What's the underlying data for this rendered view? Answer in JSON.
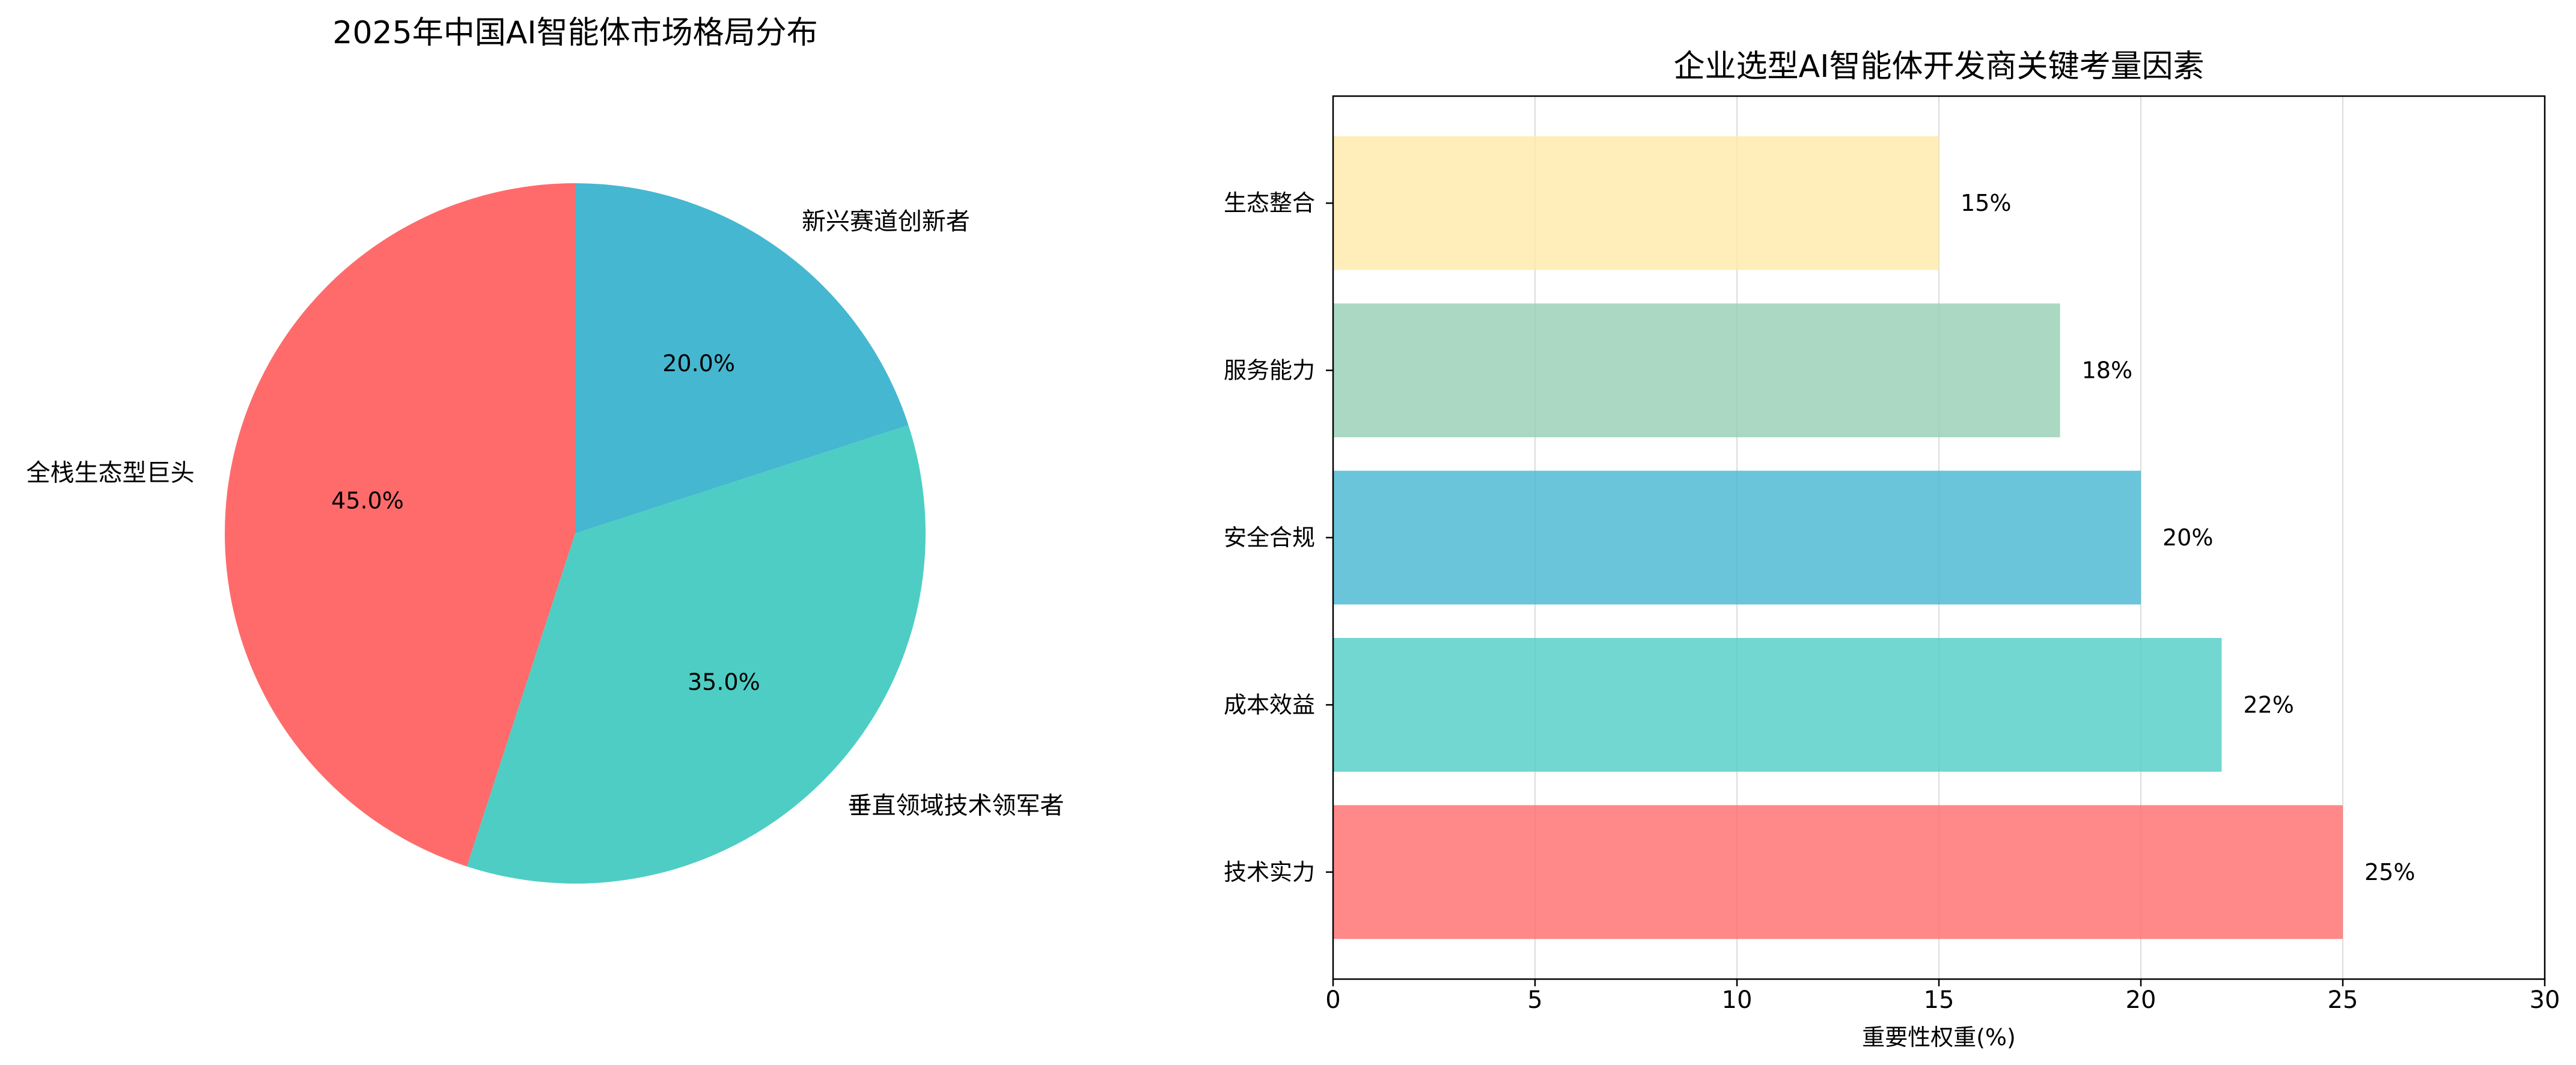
{
  "chart_data": [
    {
      "type": "pie",
      "title": "2025年中国AI智能体市场格局分布",
      "labels": [
        "全栈生态型巨头",
        "垂直领域技术领军者",
        "新兴赛道创新者"
      ],
      "values": [
        45.0,
        35.0,
        20.0
      ],
      "value_labels": [
        "45.0%",
        "35.0%",
        "20.0%"
      ],
      "colors": [
        "#FF6B6B",
        "#4ECDC4",
        "#45B7D1"
      ],
      "start_angle_deg": 90,
      "direction": "counterclockwise"
    },
    {
      "type": "bar",
      "orientation": "horizontal",
      "title": "企业选型AI智能体开发商关键考量因素",
      "categories": [
        "技术实力",
        "成本效益",
        "安全合规",
        "服务能力",
        "生态整合"
      ],
      "values": [
        25,
        22,
        20,
        18,
        15
      ],
      "value_labels": [
        "25%",
        "22%",
        "20%",
        "18%",
        "15%"
      ],
      "colors": [
        "#FF6B6B",
        "#4ECDC4",
        "#45B7D1",
        "#96CEB4",
        "#FFEAA7"
      ],
      "bar_opacity": 0.8,
      "xlabel": "重要性权重(%)",
      "ylabel": "",
      "xlim": [
        0,
        30
      ],
      "xticks": [
        0,
        5,
        10,
        15,
        20,
        25,
        30
      ],
      "grid": "x-axis vertical lines"
    }
  ]
}
